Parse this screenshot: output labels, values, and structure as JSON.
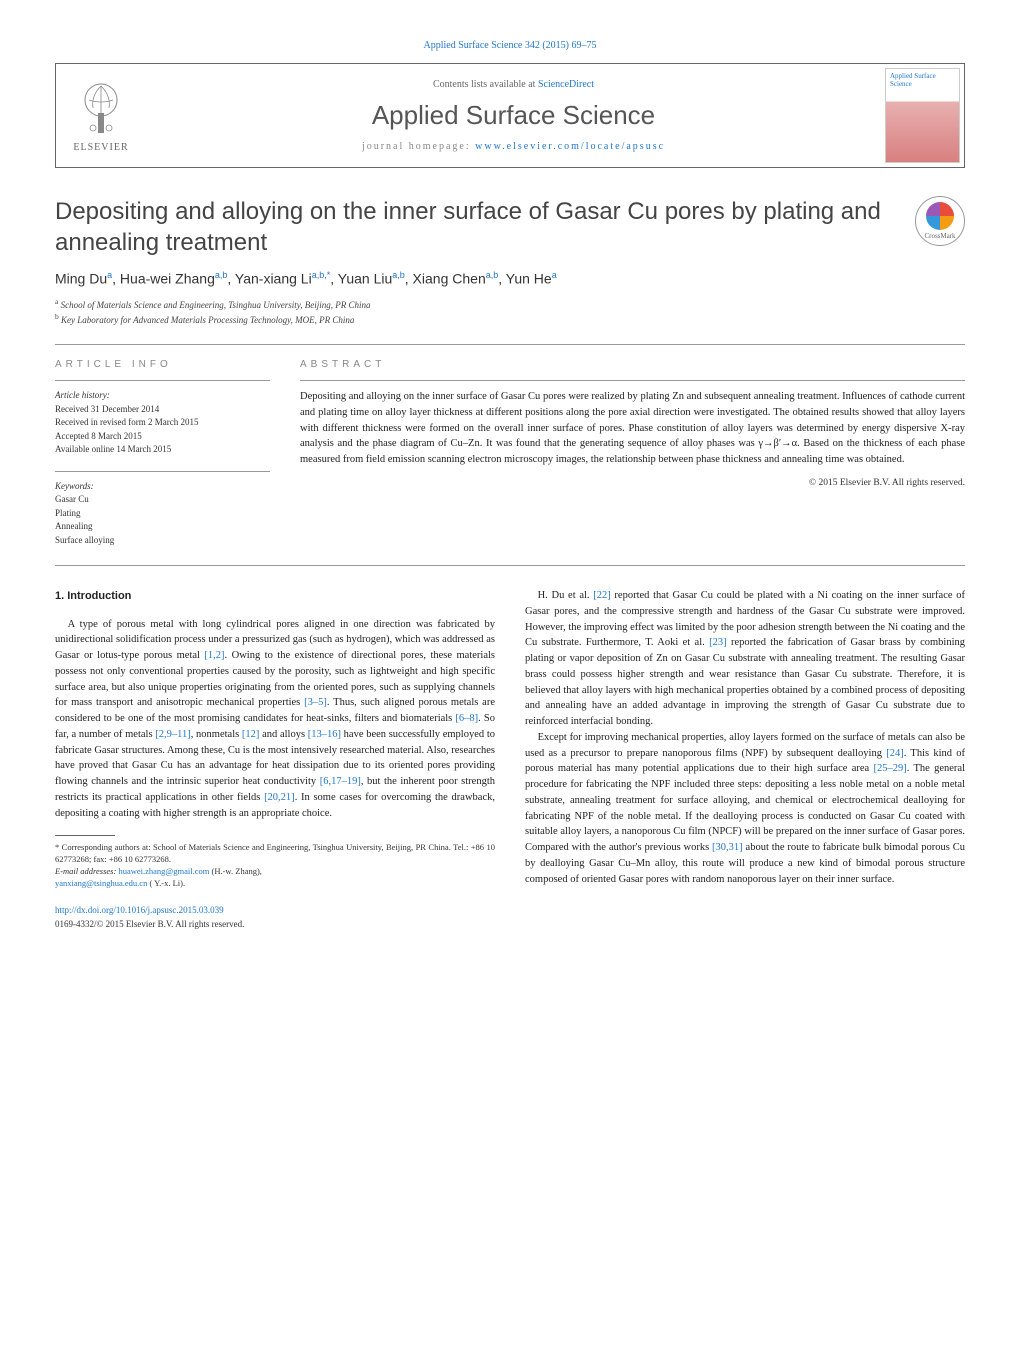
{
  "top_citation": "Applied Surface Science 342 (2015) 69–75",
  "header": {
    "contents_prefix": "Contents lists available at ",
    "contents_link": "ScienceDirect",
    "journal_name": "Applied Surface Science",
    "homepage_prefix": "journal homepage: ",
    "homepage_link": "www.elsevier.com/locate/apsusc",
    "elsevier_label": "ELSEVIER",
    "cover_title": "Applied Surface Science"
  },
  "article": {
    "title": "Depositing and alloying on the inner surface of Gasar Cu pores by plating and annealing treatment",
    "crossmark_label": "CrossMark",
    "authors_html": "Ming Du<sup>a</sup>, Hua-wei Zhang<sup>a,b</sup>, Yan-xiang Li<sup>a,b,*</sup>, Yuan Liu<sup>a,b</sup>, Xiang Chen<sup>a,b</sup>, Yun He<sup>a</sup>",
    "affiliations": {
      "a": "School of Materials Science and Engineering, Tsinghua University, Beijing, PR China",
      "b": "Key Laboratory for Advanced Materials Processing Technology, MOE, PR China"
    }
  },
  "article_info": {
    "heading": "ARTICLE INFO",
    "history_label": "Article history:",
    "received": "Received 31 December 2014",
    "revised": "Received in revised form 2 March 2015",
    "accepted": "Accepted 8 March 2015",
    "online": "Available online 14 March 2015",
    "keywords_label": "Keywords:",
    "keywords": [
      "Gasar Cu",
      "Plating",
      "Annealing",
      "Surface alloying"
    ]
  },
  "abstract": {
    "heading": "ABSTRACT",
    "text": "Depositing and alloying on the inner surface of Gasar Cu pores were realized by plating Zn and subsequent annealing treatment. Influences of cathode current and plating time on alloy layer thickness at different positions along the pore axial direction were investigated. The obtained results showed that alloy layers with different thickness were formed on the overall inner surface of pores. Phase constitution of alloy layers was determined by energy dispersive X-ray analysis and the phase diagram of Cu–Zn. It was found that the generating sequence of alloy phases was γ→β′→α. Based on the thickness of each phase measured from field emission scanning electron microscopy images, the relationship between phase thickness and annealing time was obtained.",
    "copyright": "© 2015 Elsevier B.V. All rights reserved."
  },
  "intro": {
    "heading": "1. Introduction",
    "col1_p1": "A type of porous metal with long cylindrical pores aligned in one direction was fabricated by unidirectional solidification process under a pressurized gas (such as hydrogen), which was addressed as Gasar or lotus-type porous metal [1,2]. Owing to the existence of directional pores, these materials possess not only conventional properties caused by the porosity, such as lightweight and high specific surface area, but also unique properties originating from the oriented pores, such as supplying channels for mass transport and anisotropic mechanical properties [3–5]. Thus, such aligned porous metals are considered to be one of the most promising candidates for heat-sinks, filters and biomaterials [6–8]. So far, a number of metals [2,9–11], nonmetals [12] and alloys [13–16] have been successfully employed to fabricate Gasar structures. Among these, Cu is the most intensively researched material. Also, researches have proved that Gasar Cu has an advantage for heat dissipation due to its oriented pores providing flowing channels and the intrinsic superior heat conductivity [6,17–19], but the inherent poor strength restricts its practical applications in other fields [20,21]. In some cases for overcoming the drawback, depositing a coating with higher strength is an appropriate choice.",
    "col2_p1": "H. Du et al. [22] reported that Gasar Cu could be plated with a Ni coating on the inner surface of Gasar pores, and the compressive strength and hardness of the Gasar Cu substrate were improved. However, the improving effect was limited by the poor adhesion strength between the Ni coating and the Cu substrate. Furthermore, T. Aoki et al. [23] reported the fabrication of Gasar brass by combining plating or vapor deposition of Zn on Gasar Cu substrate with annealing treatment. The resulting Gasar brass could possess higher strength and wear resistance than Gasar Cu substrate. Therefore, it is believed that alloy layers with high mechanical properties obtained by a combined process of depositing and annealing have an added advantage in improving the strength of Gasar Cu substrate due to reinforced interfacial bonding.",
    "col2_p2": "Except for improving mechanical properties, alloy layers formed on the surface of metals can also be used as a precursor to prepare nanoporous films (NPF) by subsequent dealloying [24]. This kind of porous material has many potential applications due to their high surface area [25–29]. The general procedure for fabricating the NPF included three steps: depositing a less noble metal on a noble metal substrate, annealing treatment for surface alloying, and chemical or electrochemical dealloying for fabricating NPF of the noble metal. If the dealloying process is conducted on Gasar Cu coated with suitable alloy layers, a nanoporous Cu film (NPCF) will be prepared on the inner surface of Gasar pores. Compared with the author's previous works [30,31] about the route to fabricate bulk bimodal porous Cu by dealloying Gasar Cu–Mn alloy, this route will produce a new kind of bimodal porous structure composed of oriented Gasar pores with random nanoporous layer on their inner surface."
  },
  "footnote": {
    "corresponding": "* Corresponding authors at: School of Materials Science and Engineering, Tsinghua University, Beijing, PR China. Tel.: +86 10 62773268; fax: +86 10 62773268.",
    "email_label": "E-mail addresses: ",
    "email1": "huawei.zhang@gmail.com",
    "email1_who": " (H.-w. Zhang),",
    "email2": "yanxiang@tsinghua.edu.cn",
    "email2_who": " ( Y.-x. Li)."
  },
  "doi": {
    "link": "http://dx.doi.org/10.1016/j.apsusc.2015.03.039",
    "issn": "0169-4332/© 2015 Elsevier B.V. All rights reserved."
  },
  "ref_colors": {
    "link": "#2277cc"
  },
  "refs": {
    "r1": "[1,2]",
    "r2": "[3–5]",
    "r3": "[6–8]",
    "r4": "[2,9–11]",
    "r5": "[12]",
    "r6": "[13–16]",
    "r7": "[6,17–19]",
    "r8": "[20,21]",
    "r9": "[22]",
    "r10": "[23]",
    "r11": "[24]",
    "r12": "[25–29]",
    "r13": "[30,31]"
  }
}
